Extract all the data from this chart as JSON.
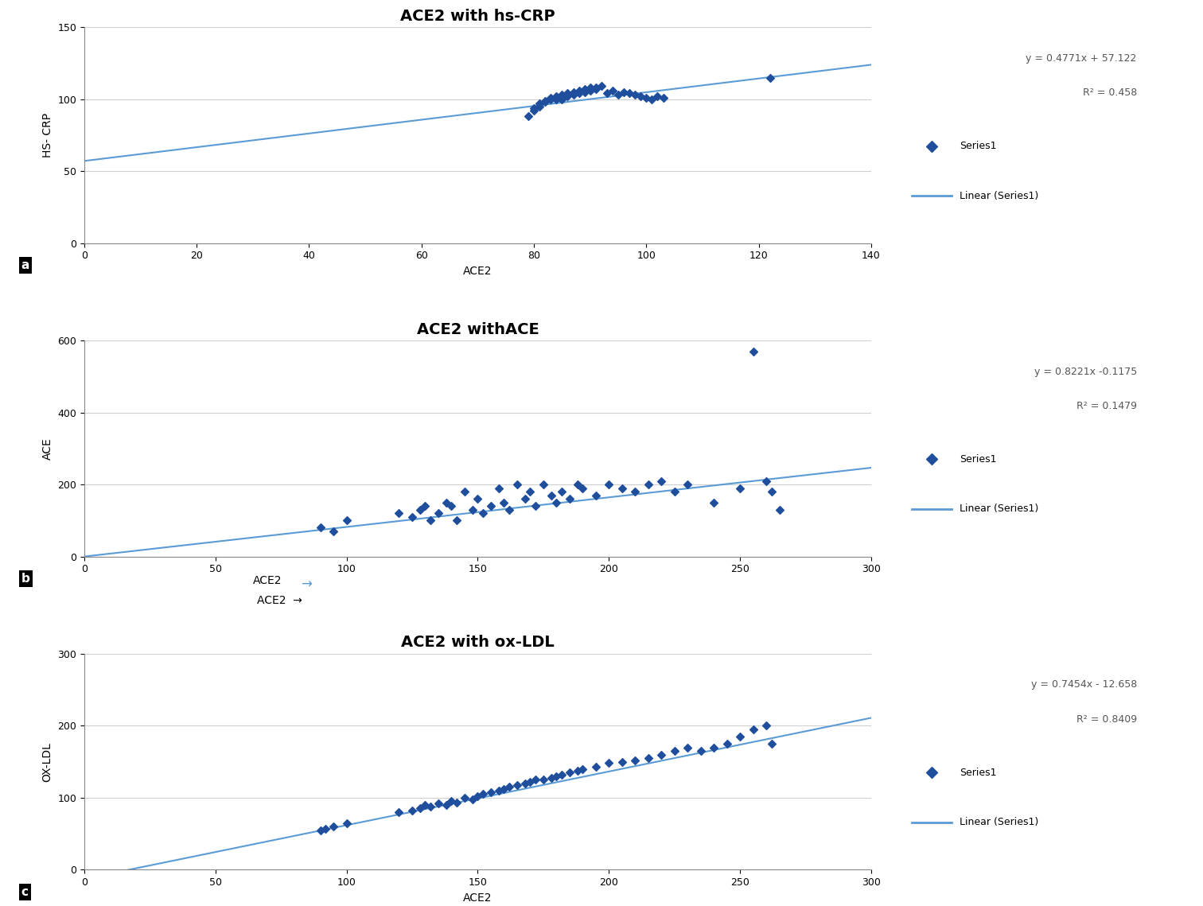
{
  "chart_a": {
    "title": "ACE2 with hs-CRP",
    "xlabel": "ACE2",
    "ylabel": "HS- CRP",
    "equation": "y = 0.4771x + 57.122",
    "r2": "R² = 0.458",
    "xlim": [
      0,
      140
    ],
    "ylim": [
      0,
      150
    ],
    "xticks": [
      0,
      20,
      40,
      60,
      80,
      100,
      120,
      140
    ],
    "yticks": [
      0,
      50,
      100,
      150
    ],
    "slope": 0.4771,
    "intercept": 57.122,
    "x": [
      79,
      80,
      80,
      81,
      81,
      82,
      82,
      83,
      83,
      84,
      84,
      85,
      85,
      85,
      86,
      86,
      86,
      87,
      87,
      88,
      88,
      89,
      89,
      90,
      90,
      91,
      91,
      92,
      93,
      94,
      95,
      96,
      97,
      98,
      99,
      100,
      101,
      102,
      103,
      122
    ],
    "y": [
      88,
      92,
      94,
      95,
      97,
      98,
      99,
      100,
      101,
      100,
      102,
      100,
      101,
      103,
      102,
      103,
      104,
      103,
      105,
      104,
      106,
      105,
      107,
      106,
      108,
      107,
      108,
      109,
      104,
      106,
      103,
      105,
      104,
      103,
      102,
      101,
      100,
      102,
      101,
      115
    ]
  },
  "chart_b": {
    "title": "ACE2 withACE",
    "xlabel": "ACE2",
    "ylabel": "ACE",
    "equation": "y = 0.8221x -0.1175",
    "r2": "R² = 0.1479",
    "xlim": [
      0,
      300
    ],
    "ylim": [
      0,
      600
    ],
    "xticks": [
      0,
      50,
      100,
      150,
      200,
      250,
      300
    ],
    "yticks": [
      0,
      200,
      400,
      600
    ],
    "slope": 0.8221,
    "intercept": -0.1175,
    "x": [
      90,
      95,
      100,
      120,
      125,
      128,
      130,
      132,
      135,
      138,
      140,
      142,
      145,
      148,
      150,
      152,
      155,
      158,
      160,
      162,
      165,
      168,
      170,
      172,
      175,
      178,
      180,
      182,
      185,
      188,
      190,
      195,
      200,
      205,
      210,
      215,
      220,
      225,
      230,
      240,
      250,
      255,
      260,
      262,
      265
    ],
    "y": [
      80,
      70,
      100,
      120,
      110,
      130,
      140,
      100,
      120,
      150,
      140,
      100,
      180,
      130,
      160,
      120,
      140,
      190,
      150,
      130,
      200,
      160,
      180,
      140,
      200,
      170,
      150,
      180,
      160,
      200,
      190,
      170,
      200,
      190,
      180,
      200,
      210,
      180,
      200,
      150,
      190,
      570,
      210,
      180,
      130
    ]
  },
  "chart_c": {
    "title": "ACE2 with ox-LDL",
    "xlabel": "ACE2",
    "ylabel": "OX-LDL",
    "equation": "y = 0.7454x - 12.658",
    "r2": "R² = 0.8409",
    "xlim": [
      0,
      300
    ],
    "ylim": [
      0,
      300
    ],
    "xticks": [
      0,
      50,
      100,
      150,
      200,
      250,
      300
    ],
    "yticks": [
      0,
      100,
      200,
      300
    ],
    "slope": 0.7454,
    "intercept": -12.658,
    "x": [
      90,
      92,
      95,
      100,
      120,
      125,
      128,
      130,
      132,
      135,
      138,
      140,
      142,
      145,
      148,
      150,
      152,
      155,
      158,
      160,
      162,
      165,
      168,
      170,
      172,
      175,
      178,
      180,
      182,
      185,
      188,
      190,
      195,
      200,
      205,
      210,
      215,
      220,
      225,
      230,
      235,
      240,
      245,
      250,
      255,
      260,
      262
    ],
    "y": [
      55,
      57,
      60,
      65,
      80,
      82,
      85,
      90,
      88,
      92,
      90,
      95,
      93,
      100,
      98,
      102,
      105,
      108,
      110,
      112,
      115,
      118,
      120,
      122,
      125,
      125,
      128,
      130,
      132,
      135,
      138,
      140,
      143,
      148,
      150,
      152,
      155,
      160,
      165,
      170,
      165,
      170,
      175,
      185,
      195,
      200,
      175
    ]
  },
  "point_color": "#1F4E9C",
  "line_color": "#5B9BD5",
  "background_color": "#ffffff",
  "grid_color": "#d0d0d0",
  "label_font": "DejaVu Sans",
  "title_fontsize": 14,
  "axis_label_fontsize": 10,
  "tick_fontsize": 9,
  "eq_fontsize": 9,
  "legend_fontsize": 9,
  "marker": "D",
  "marker_size": 5
}
